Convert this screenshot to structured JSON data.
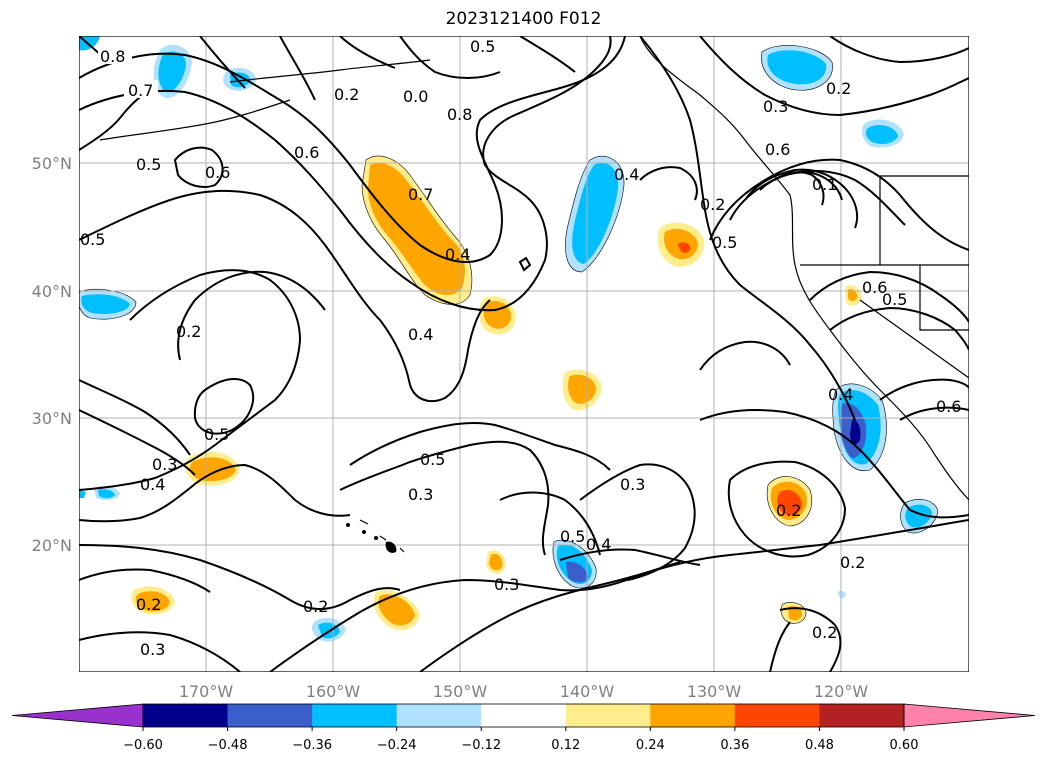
{
  "title": "2023121400 F012",
  "lat_ticks": [
    "50°N",
    "40°N",
    "30°N",
    "20°N"
  ],
  "lon_ticks": [
    "170°W",
    "160°W",
    "150°W",
    "140°W",
    "130°W",
    "120°W"
  ],
  "colorbar": {
    "tick_labels": [
      "−0.60",
      "−0.48",
      "−0.36",
      "−0.24",
      "−0.12",
      "0.12",
      "0.24",
      "0.36",
      "0.48",
      "0.60"
    ],
    "colors": [
      "#9932cc",
      "#00008b",
      "#3a5fcd",
      "#00bfff",
      "#b0e2ff",
      "#ffffff",
      "#ffec8b",
      "#ffa500",
      "#ff4500",
      "#b22222",
      "#ff82ab"
    ]
  },
  "contour_labels": [
    "0.8",
    "0.7",
    "0.5",
    "0.5",
    "0.6",
    "0.6",
    "0.2",
    "0.0",
    "0.8",
    "0.5",
    "0.7",
    "0.4",
    "0.4",
    "0.4",
    "0.2",
    "0.5",
    "0.3",
    "0.4",
    "0.5",
    "0.3",
    "0.5",
    "0.4",
    "0.3",
    "0.3",
    "0.2",
    "0.3",
    "0.2",
    "0.3",
    "0.2",
    "0.1",
    "0.6",
    "0.5",
    "0.5",
    "0.6",
    "0.4",
    "0.6",
    "0.2",
    "0.2",
    "0.2",
    "0.2"
  ]
}
